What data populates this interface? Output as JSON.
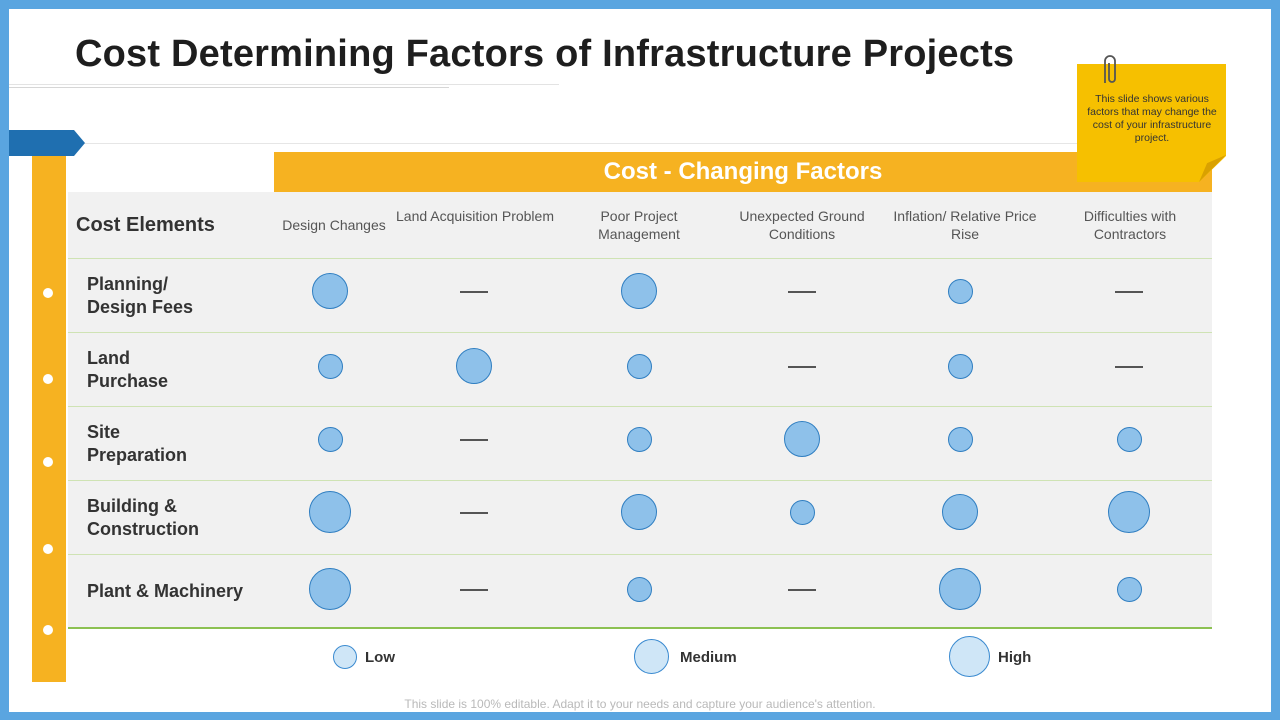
{
  "title": "Cost Determining Factors of Infrastructure Projects",
  "header": "Cost - Changing Factors",
  "cost_elements_label": "Cost Elements",
  "columns": [
    "Design Changes",
    "Land Acquisition Problem",
    "Poor Project Management",
    "Unexpected Ground Conditions",
    "Inflation/ Relative Price Rise",
    "Difficulties with Contractors"
  ],
  "rows": [
    {
      "label_line1": "Planning/",
      "label_line2": "Design Fees",
      "values": [
        "medium",
        "none",
        "medium",
        "none",
        "low",
        "none"
      ]
    },
    {
      "label_line1": "Land",
      "label_line2": "Purchase",
      "values": [
        "low",
        "medium",
        "low",
        "none",
        "low",
        "none"
      ]
    },
    {
      "label_line1": "Site",
      "label_line2": "Preparation",
      "values": [
        "low",
        "none",
        "low",
        "medium",
        "low",
        "low"
      ]
    },
    {
      "label_line1": "Building &",
      "label_line2": "Construction",
      "values": [
        "high",
        "none",
        "medium",
        "low",
        "medium",
        "high"
      ]
    },
    {
      "label_line1": "Plant & Machinery",
      "label_line2": "",
      "values": [
        "high",
        "none",
        "low",
        "none",
        "high",
        "low"
      ]
    }
  ],
  "legend": {
    "low": "Low",
    "medium": "Medium",
    "high": "High"
  },
  "note": "This slide shows various factors that may change the cost of your infrastructure project.",
  "footer": "This slide is 100% editable. Adapt it to your needs and capture your audience's attention.",
  "colors": {
    "accent_yellow": "#f6b221",
    "bubble_fill": "#8ec1ea",
    "bubble_stroke": "#2f7ec1",
    "frame_blue": "#5aa5e0"
  }
}
